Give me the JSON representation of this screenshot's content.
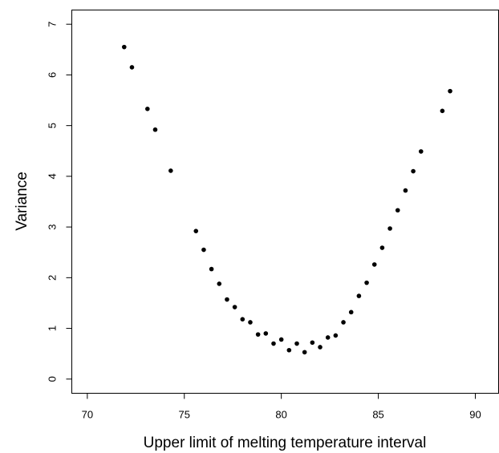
{
  "chart_data": {
    "type": "scatter",
    "title": "",
    "xlabel": "Upper limit of melting temperature interval",
    "ylabel": "Variance",
    "xlim": [
      69.2,
      91.2
    ],
    "ylim": [
      -0.28,
      7.28
    ],
    "xticks": [
      70,
      75,
      80,
      85,
      90
    ],
    "yticks": [
      0,
      1,
      2,
      3,
      4,
      5,
      6,
      7
    ],
    "grid": false,
    "legend": "none",
    "marker_color": "#000000",
    "series": [
      {
        "x": [
          71.9,
          72.3,
          73.1,
          73.5,
          74.3,
          75.6,
          76.0,
          76.4,
          76.8,
          77.2,
          77.6,
          78.0,
          78.4,
          78.8,
          79.2,
          79.6,
          80.0,
          80.4,
          80.8,
          81.2,
          81.6,
          82.0,
          82.4,
          82.8,
          83.2,
          83.6,
          84.0,
          84.4,
          84.8,
          85.2,
          85.6,
          86.0,
          86.4,
          86.8,
          87.2,
          88.3,
          88.7
        ],
        "y": [
          6.55,
          6.15,
          5.33,
          4.92,
          4.11,
          2.92,
          2.55,
          2.17,
          1.88,
          1.57,
          1.42,
          1.18,
          1.12,
          0.88,
          0.9,
          0.7,
          0.78,
          0.57,
          0.7,
          0.53,
          0.72,
          0.63,
          0.82,
          0.86,
          1.12,
          1.32,
          1.64,
          1.9,
          2.26,
          2.59,
          2.97,
          3.33,
          3.72,
          4.1,
          4.49,
          5.29,
          5.68
        ]
      }
    ]
  }
}
